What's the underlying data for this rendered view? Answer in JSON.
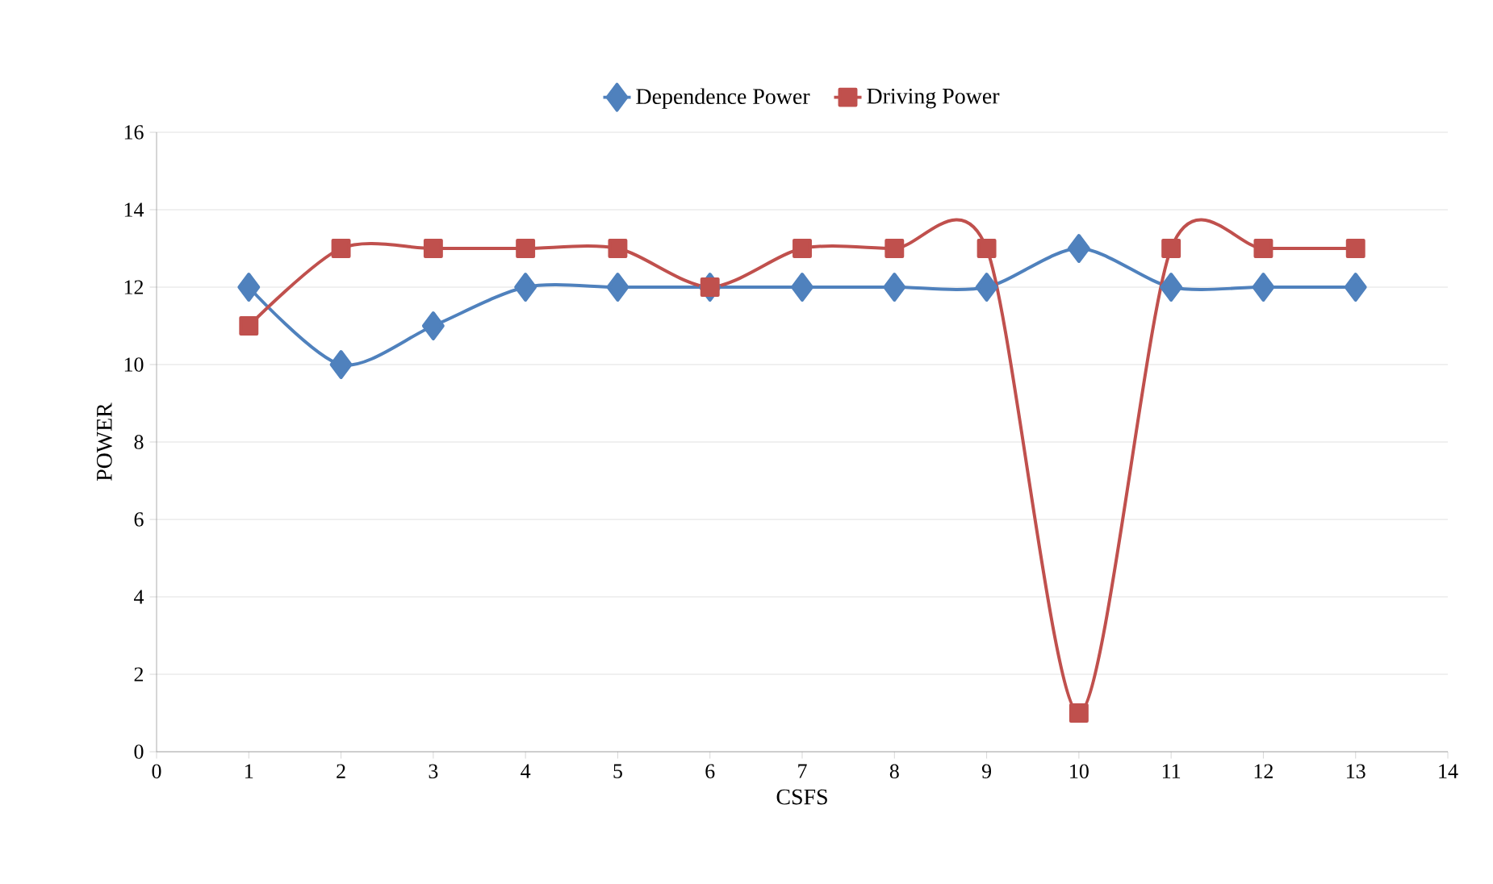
{
  "chart_data": {
    "type": "line",
    "xlabel": "CSFS",
    "ylabel": "POWER",
    "x": [
      1,
      2,
      3,
      4,
      5,
      6,
      7,
      8,
      9,
      10,
      11,
      12,
      13
    ],
    "series": [
      {
        "name": "Dependence Power",
        "color": "#4f81bd",
        "marker": "diamond",
        "values": [
          12,
          10,
          11,
          12,
          12,
          12,
          12,
          12,
          12,
          13,
          12,
          12,
          12
        ]
      },
      {
        "name": "Driving Power",
        "color": "#c0504d",
        "marker": "square",
        "values": [
          11,
          13,
          13,
          13,
          13,
          12,
          13,
          13,
          13,
          1,
          13,
          13,
          13
        ]
      }
    ],
    "xlim": [
      0,
      14
    ],
    "xticks": [
      0,
      1,
      2,
      3,
      4,
      5,
      6,
      7,
      8,
      9,
      10,
      11,
      12,
      13,
      14
    ],
    "ylim": [
      0,
      16
    ],
    "yticks": [
      0,
      2,
      4,
      6,
      8,
      10,
      12,
      14,
      16
    ],
    "grid": "y",
    "legend": "top",
    "line_style": "solid"
  }
}
